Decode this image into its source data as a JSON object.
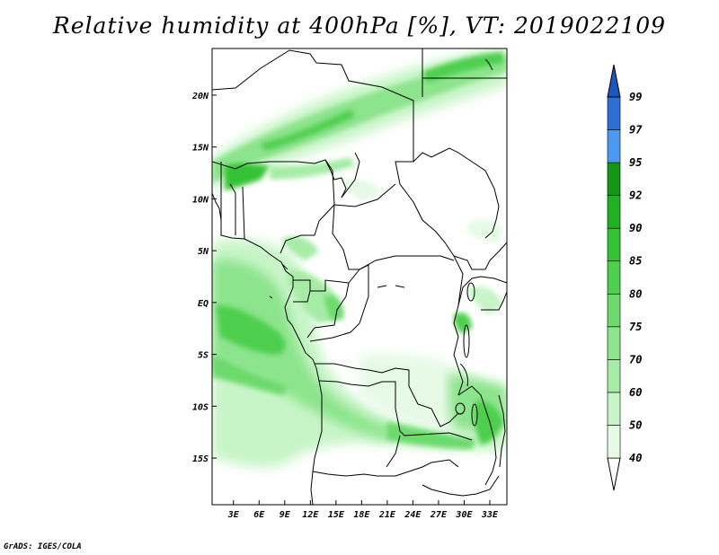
{
  "title": "Relative humidity at 400hPa [%], VT: 2019022109",
  "credit": "GrADS: IGES/COLA",
  "map": {
    "lon_labels": [
      "3E",
      "6E",
      "9E",
      "12E",
      "15E",
      "18E",
      "21E",
      "24E",
      "27E",
      "30E",
      "33E"
    ],
    "lon_values": [
      3,
      6,
      9,
      12,
      15,
      18,
      21,
      24,
      27,
      30,
      33
    ],
    "lat_labels": [
      "20N",
      "15N",
      "10N",
      "5N",
      "EQ",
      "5S",
      "10S",
      "15S"
    ],
    "lat_values": [
      20,
      15,
      10,
      5,
      0,
      -5,
      -10,
      -15
    ],
    "lon_range": [
      0.5,
      35
    ],
    "lat_range": [
      -19.5,
      24.5
    ]
  },
  "colorbar": {
    "levels": [
      "40",
      "50",
      "60",
      "70",
      "75",
      "80",
      "85",
      "90",
      "92",
      "95",
      "97",
      "99"
    ],
    "colors": [
      "#ffffff",
      "#e6fae6",
      "#c8f5c8",
      "#a6eca6",
      "#8ce48c",
      "#6cda6c",
      "#4ecf4e",
      "#34c234",
      "#20b020",
      "#149614",
      "#4a9af0",
      "#2e6fd6",
      "#1a55c0"
    ]
  }
}
